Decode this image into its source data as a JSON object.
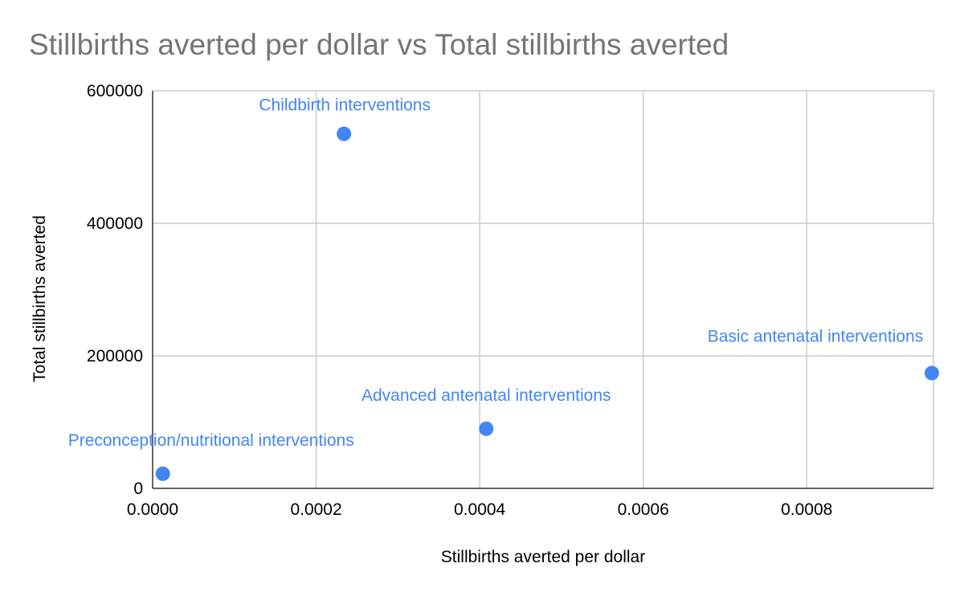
{
  "chart_data": {
    "type": "scatter",
    "title": "Stillbirths averted per dollar vs Total stillbirths averted",
    "xlabel": "Stillbirths averted per dollar",
    "ylabel": "Total stillbirths averted",
    "xlim": [
      0,
      0.000955
    ],
    "ylim": [
      0,
      600000
    ],
    "x_ticks": [
      "0.0000",
      "0.0002",
      "0.0004",
      "0.0006",
      "0.0008"
    ],
    "x_tick_values": [
      0,
      0.0002,
      0.0004,
      0.0006,
      0.0008
    ],
    "y_ticks": [
      "0",
      "200000",
      "400000",
      "600000"
    ],
    "y_tick_values": [
      0,
      200000,
      400000,
      600000
    ],
    "grid": true,
    "point_color": "#4285f4",
    "label_color": "#4285f4",
    "points": [
      {
        "label": "Preconception/nutritional interventions",
        "x": 1.25e-05,
        "y": 22000
      },
      {
        "label": "Childbirth interventions",
        "x": 0.000234,
        "y": 535000
      },
      {
        "label": "Advanced antenatal interventions",
        "x": 0.000408,
        "y": 90000
      },
      {
        "label": "Basic antenatal interventions",
        "x": 0.000953,
        "y": 174000
      }
    ]
  }
}
